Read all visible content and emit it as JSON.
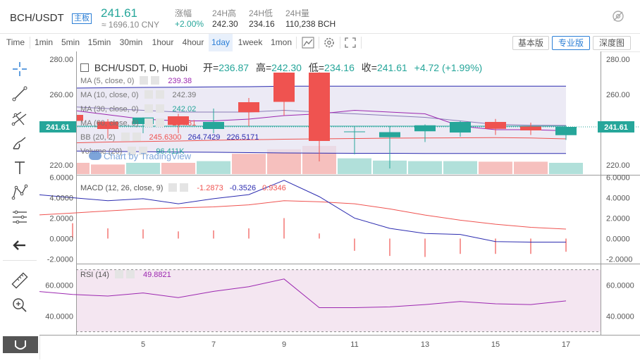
{
  "header": {
    "symbol": "BCH/USDT",
    "badge": "主板",
    "last_price": "241.61",
    "cny": "≈ 1696.10 CNY",
    "change_label": "涨幅",
    "change_value": "+2.00%",
    "high_label": "24H高",
    "high_value": "242.30",
    "low_label": "24H低",
    "low_value": "234.16",
    "vol_label": "24H量",
    "vol_value": "110,238 BCH",
    "hide_icon": "eye-slash-icon"
  },
  "toolbar": {
    "timeframes": [
      "Time",
      "1min",
      "5min",
      "15min",
      "30min",
      "1hour",
      "4hour",
      "1day",
      "1week",
      "1mon"
    ],
    "active_timeframe": "1day",
    "versions": [
      "基本版",
      "专业版",
      "深度图"
    ],
    "active_version": "专业版",
    "tool_icons": [
      "chart-style-icon",
      "settings-icon",
      "fullscreen-icon"
    ]
  },
  "sidebar": {
    "tools": [
      "crosshair-icon",
      "trend-line-icon",
      "pitchfork-icon",
      "brush-icon",
      "text-icon",
      "pattern-icon",
      "measure-lines-icon",
      "back-arrow-icon",
      "ruler-icon",
      "zoom-in-icon",
      "magnet-icon"
    ]
  },
  "colors": {
    "up": "#26a69a",
    "down": "#ef5350",
    "ma5": "#9c27b0",
    "ma10": "#777777",
    "ma30": "#26a69a",
    "ma60": "#ef5350",
    "bb_fill": "#e6e3f2",
    "rsi_fill": "#f4e6f1"
  },
  "main": {
    "title": "BCH/USDT, D, Huobi",
    "ohlc_labels": [
      "开=",
      "高=",
      "低=",
      "收="
    ],
    "ohlc_values": [
      "236.87",
      "242.30",
      "234.16",
      "241.61"
    ],
    "change": "+4.72 (+1.99%)",
    "price_tag": "241.61",
    "legend": [
      {
        "label": "MA (5, close, 0)",
        "values": [
          "239.38"
        ],
        "color": "#9c27b0"
      },
      {
        "label": "MA (10, close, 0)",
        "values": [
          "242.39"
        ],
        "color": "#777777"
      },
      {
        "label": "MA (30, close, 0)",
        "values": [
          "242.02"
        ],
        "color": "#26a69a"
      },
      {
        "label": "MA (60, close, 0)",
        "values": [
          "234.81"
        ],
        "color": "#ef5350"
      },
      {
        "label": "BB (20, 2)",
        "values": [
          "245.6300",
          "264.7429",
          "226.5171"
        ],
        "color": "#2c2cb0"
      },
      {
        "label": "Volume (20)",
        "values": [
          "96.411K"
        ],
        "color": "#26a69a"
      }
    ],
    "watermark": "Chart by TradingView",
    "y_ticks": [
      "280.00",
      "260.00",
      "220.00"
    ]
  },
  "macd": {
    "label": "MACD (12, 26, close, 9)",
    "values": [
      "-1.2873",
      "-0.3526",
      "0.9346"
    ],
    "y_ticks": [
      "6.0000",
      "4.0000",
      "2.0000",
      "0.0000",
      "-2.0000"
    ]
  },
  "rsi": {
    "label": "RSI (14)",
    "value": "49.8821",
    "y_ticks": [
      "60.0000",
      "40.0000"
    ]
  },
  "x_ticks": [
    "5",
    "7",
    "9",
    "11",
    "13",
    "15",
    "17"
  ],
  "chart_data": {
    "type": "candlestick",
    "x": [
      2,
      3,
      4,
      5,
      6,
      7,
      8,
      9,
      10,
      11,
      12,
      13,
      14,
      15,
      16,
      17
    ],
    "open": [
      250.5,
      248.4,
      244.6,
      243.2,
      247.6,
      240.4,
      255.6,
      272.4,
      272.4,
      238.8,
      235.7,
      239.1,
      238.4,
      244.4,
      241.8,
      236.9
    ],
    "high": [
      251.0,
      250.0,
      246.0,
      247.0,
      249.0,
      252.0,
      258.0,
      272.6,
      272.6,
      242.0,
      242.0,
      243.0,
      244.9,
      246.1,
      244.0,
      242.3
    ],
    "low": [
      243.0,
      239.0,
      235.0,
      238.0,
      238.0,
      238.0,
      242.0,
      248.0,
      222.0,
      226.0,
      218.0,
      233.0,
      236.0,
      237.0,
      237.0,
      234.2
    ],
    "close": [
      246.0,
      245.0,
      240.4,
      246.9,
      242.7,
      244.4,
      249.9,
      255.8,
      233.6,
      239.0,
      238.6,
      242.5,
      244.4,
      240.5,
      239.6,
      241.6
    ],
    "volume": [
      50,
      40,
      34,
      40,
      40,
      46,
      72,
      88,
      100,
      56,
      48,
      46,
      46,
      44,
      44,
      40
    ],
    "macd": [
      4.3,
      4.0,
      3.7,
      3.9,
      3.4,
      3.9,
      4.3,
      5.7,
      4.1,
      2.0,
      1.0,
      0.5,
      0.4,
      -0.3,
      -0.35,
      -0.35
    ],
    "signal": [
      2.3,
      2.5,
      2.7,
      2.9,
      3.0,
      3.1,
      3.3,
      3.7,
      3.6,
      3.4,
      2.9,
      2.3,
      1.8,
      1.4,
      1.1,
      0.93
    ],
    "histogram": [
      1.6,
      1.5,
      1.0,
      0.9,
      0.7,
      0.8,
      1.0,
      2.0,
      0.5,
      -1.2,
      -1.7,
      -1.8,
      -1.5,
      -1.5,
      -1.5,
      -1.29
    ],
    "rsi": [
      56,
      54,
      53,
      55,
      52,
      56,
      59,
      64,
      45.5,
      45.5,
      46,
      47.5,
      49.5,
      48,
      47.5,
      49.9
    ],
    "bb_upper": [
      263.5,
      263.6,
      263.8,
      264.0,
      264.1,
      264.3,
      264.4,
      264.7,
      264.7,
      264.7,
      264.7,
      264.7,
      264.7,
      264.7,
      264.7,
      264.7
    ],
    "bb_lower": [
      228.0,
      227.9,
      227.7,
      227.5,
      227.3,
      227.2,
      227.0,
      226.8,
      226.7,
      226.6,
      226.6,
      226.5,
      226.5,
      226.5,
      226.5,
      226.5
    ],
    "ma5": [
      253,
      251,
      248.5,
      246,
      245,
      245,
      246,
      248,
      249,
      251,
      250,
      249,
      242,
      240,
      240,
      239.4
    ],
    "ma10": [
      254,
      253,
      252,
      251,
      250,
      250,
      250,
      251,
      250,
      249,
      248,
      247,
      245,
      243,
      242.5,
      242.4
    ],
    "ma30": [
      242,
      242,
      242,
      242,
      242,
      242,
      242,
      242,
      242,
      242,
      242,
      242,
      242,
      242,
      242,
      242
    ],
    "ma60": [
      232,
      232.5,
      233,
      233.3,
      233.6,
      234,
      234.3,
      234.6,
      234.8,
      235,
      235.2,
      235.3,
      235.4,
      235.5,
      235.3,
      234.8
    ],
    "price_ylim": [
      214,
      282
    ],
    "macd_ylim": [
      -2.2,
      6.1
    ],
    "rsi_ylim": [
      28,
      73
    ],
    "rsi_bands": [
      70,
      30
    ]
  }
}
